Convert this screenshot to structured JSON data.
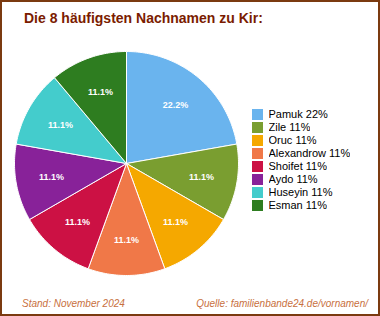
{
  "chart_data": {
    "type": "pie",
    "title": "Die 8 häufigsten Nachnamen zu Kir:",
    "categories": [
      "Pamuk 22%",
      "Zile 11%",
      "Oruc 11%",
      "Alexandrow 11%",
      "Shoifet 11%",
      "Aydo 11%",
      "Huseyin 11%",
      "Esman 11%"
    ],
    "values": [
      22.2,
      11.1,
      11.1,
      11.1,
      11.1,
      11.1,
      11.1,
      11.1
    ],
    "value_labels": [
      "22.2%",
      "11.1%",
      "11.1%",
      "11.1%",
      "11.1%",
      "11.1%",
      "11.1%",
      "11.1%"
    ],
    "data_labels": true,
    "colors": [
      "#6ab4ee",
      "#7a9e30",
      "#f5a800",
      "#f07848",
      "#cc1144",
      "#882299",
      "#44cccc",
      "#2e7d20"
    ],
    "legend": "right",
    "annotations": [
      "Stand: November 2024",
      "Quelle: familienbande24.de/vornamen/"
    ]
  }
}
